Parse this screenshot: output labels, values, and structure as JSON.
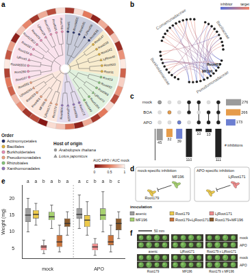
{
  "panel_labels": [
    "a",
    "b",
    "c",
    "d",
    "e",
    "f"
  ],
  "tree": {
    "order_title": "Order",
    "orders": [
      {
        "name": "Actinomycetales",
        "color": "#27326e"
      },
      {
        "name": "Bacillales",
        "color": "#e2b23a"
      },
      {
        "name": "Burkholderiales",
        "color": "#ec8fb6"
      },
      {
        "name": "Pseudomonadales",
        "color": "#f2a37f"
      },
      {
        "name": "Rhizobiales",
        "color": "#86c77a"
      },
      {
        "name": "Xanthomonadales",
        "color": "#9475bd"
      }
    ],
    "host_title": "Host of origin",
    "hosts": [
      {
        "name": "Arabidopsis thaliana",
        "marker": "circle"
      },
      {
        "name": "Lotus japonicus",
        "marker": "triangle"
      }
    ],
    "colorbar": {
      "title": "AUC APO / AUC mock",
      "range": [
        0,
        1
      ],
      "ticks": [
        0,
        0.5,
        1
      ]
    },
    "leaves": [
      {
        "name": "Root1",
        "order": "Actinomycetales",
        "host": "Arabidopsis thaliana",
        "ratio": 0.2
      },
      {
        "name": "Root66D1",
        "order": "Actinomycetales",
        "host": "Arabidopsis thaliana",
        "ratio": 0.9
      },
      {
        "name": "Root101",
        "order": "Actinomycetales",
        "host": "Arabidopsis thaliana",
        "ratio": 0.5
      },
      {
        "name": "LjRoot58",
        "order": "Actinomycetales",
        "host": "Lotus japonicus",
        "ratio": 0.1
      },
      {
        "name": "Root131",
        "order": "Actinomycetales",
        "host": "Arabidopsis thaliana",
        "ratio": 0.7
      },
      {
        "name": "Root147",
        "order": "Bacillales",
        "host": "Arabidopsis thaliana",
        "ratio": 0.3
      },
      {
        "name": "Root239",
        "order": "Bacillales",
        "host": "Arabidopsis thaliana",
        "ratio": 0.8
      },
      {
        "name": "Root342",
        "order": "Bacillales",
        "host": "Arabidopsis thaliana",
        "ratio": 0.15
      },
      {
        "name": "LjRoot40",
        "order": "Bacillales",
        "host": "Lotus japonicus",
        "ratio": 0.6
      },
      {
        "name": "Root920",
        "order": "Bacillales",
        "host": "Arabidopsis thaliana",
        "ratio": 0.95
      },
      {
        "name": "Root11",
        "order": "Bacillales",
        "host": "Arabidopsis thaliana",
        "ratio": 0.4
      },
      {
        "name": "Root23",
        "order": "Rhizobiales",
        "host": "Arabidopsis thaliana",
        "ratio": 0.85
      },
      {
        "name": "Root482",
        "order": "Rhizobiales",
        "host": "Arabidopsis thaliana",
        "ratio": 0.6
      },
      {
        "name": "Root568",
        "order": "Rhizobiales",
        "host": "Arabidopsis thaliana",
        "ratio": 0.3
      },
      {
        "name": "LjRoot70",
        "order": "Rhizobiales",
        "host": "Lotus japonicus",
        "ratio": 0.9
      },
      {
        "name": "Root1204",
        "order": "Rhizobiales",
        "host": "Arabidopsis thaliana",
        "ratio": 0.5
      },
      {
        "name": "Root149",
        "order": "Rhizobiales",
        "host": "Arabidopsis thaliana",
        "ratio": 0.2
      },
      {
        "name": "Root172",
        "order": "Xanthomonadales",
        "host": "Arabidopsis thaliana",
        "ratio": 0.7
      },
      {
        "name": "Root690",
        "order": "Xanthomonadales",
        "host": "Arabidopsis thaliana",
        "ratio": 0.1
      },
      {
        "name": "LjRoot119",
        "order": "Xanthomonadales",
        "host": "Lotus japonicus",
        "ratio": 0.45
      },
      {
        "name": "Root604",
        "order": "Xanthomonadales",
        "host": "Arabidopsis thaliana",
        "ratio": 0.8
      },
      {
        "name": "Root179",
        "order": "Pseudomonadales",
        "host": "Arabidopsis thaliana",
        "ratio": 0.9
      },
      {
        "name": "LjRoot171",
        "order": "Pseudomonadales",
        "host": "Lotus japonicus",
        "ratio": 0.05
      },
      {
        "name": "MF196",
        "order": "Pseudomonadales",
        "host": "Arabidopsis thaliana",
        "ratio": 0.3
      },
      {
        "name": "Root401",
        "order": "Pseudomonadales",
        "host": "Arabidopsis thaliana",
        "ratio": 0.2
      },
      {
        "name": "Root329",
        "order": "Pseudomonadales",
        "host": "Arabidopsis thaliana",
        "ratio": 0.6
      },
      {
        "name": "LjRoot263",
        "order": "Pseudomonadales",
        "host": "Lotus japonicus",
        "ratio": 0.75
      },
      {
        "name": "Root562",
        "order": "Pseudomonadales",
        "host": "Arabidopsis thaliana",
        "ratio": 0.4
      },
      {
        "name": "Root107",
        "order": "Burkholderiales",
        "host": "Arabidopsis thaliana",
        "ratio": 0.5
      },
      {
        "name": "Root280",
        "order": "Burkholderiales",
        "host": "Arabidopsis thaliana",
        "ratio": 0.25
      },
      {
        "name": "Root483D2",
        "order": "Burkholderiales",
        "host": "Arabidopsis thaliana",
        "ratio": 0.95
      },
      {
        "name": "LjRoot1",
        "order": "Burkholderiales",
        "host": "Lotus japonicus",
        "ratio": 0.35
      },
      {
        "name": "Root154",
        "order": "Burkholderiales",
        "host": "Arabidopsis thaliana",
        "ratio": 0.65
      },
      {
        "name": "Root187",
        "order": "Burkholderiales",
        "host": "Arabidopsis thaliana",
        "ratio": 0.1
      },
      {
        "name": "Root123D2",
        "order": "Burkholderiales",
        "host": "Arabidopsis thaliana",
        "ratio": 0.8
      },
      {
        "name": "Root470",
        "order": "Burkholderiales",
        "host": "Arabidopsis thaliana",
        "ratio": 0.55
      },
      {
        "name": "LjRoot29",
        "order": "Burkholderiales",
        "host": "Lotus japonicus",
        "ratio": 0.2
      },
      {
        "name": "Root1221",
        "order": "Burkholderiales",
        "host": "Arabidopsis thaliana",
        "ratio": 0.7
      },
      {
        "name": "Root656",
        "order": "Burkholderiales",
        "host": "Arabidopsis thaliana",
        "ratio": 0.3
      },
      {
        "name": "Root700",
        "order": "Burkholderiales",
        "host": "Arabidopsis thaliana",
        "ratio": 0.9
      }
    ]
  },
  "network": {
    "families": [
      {
        "name": "Comamonadaceae",
        "nodes": 12
      },
      {
        "name": "Bacillaceae",
        "nodes": 10
      },
      {
        "name": "Pseudomonadaceae",
        "nodes": 12
      },
      {
        "name": "Burkholderiaceae",
        "nodes": 10
      }
    ],
    "node_labels": [
      {
        "node": 24,
        "label": "Root401"
      },
      {
        "node": 27,
        "label": "MF196"
      }
    ],
    "edges": [
      [
        24,
        2
      ],
      [
        24,
        5
      ],
      [
        24,
        9
      ],
      [
        24,
        14
      ],
      [
        24,
        18
      ],
      [
        24,
        38
      ],
      [
        27,
        0
      ],
      [
        27,
        3
      ],
      [
        27,
        7
      ],
      [
        27,
        11
      ],
      [
        27,
        13
      ],
      [
        27,
        16
      ],
      [
        27,
        20
      ],
      [
        27,
        36
      ],
      [
        27,
        40
      ],
      [
        25,
        6
      ],
      [
        25,
        15
      ],
      [
        29,
        4
      ],
      [
        29,
        19
      ],
      [
        29,
        35
      ],
      [
        31,
        8
      ],
      [
        31,
        12
      ],
      [
        22,
        10
      ],
      [
        22,
        17
      ],
      [
        33,
        1
      ],
      [
        33,
        41
      ],
      [
        14,
        30
      ],
      [
        18,
        26
      ],
      [
        36,
        23
      ],
      [
        40,
        28
      ],
      [
        5,
        32
      ],
      [
        9,
        42
      ],
      [
        13,
        37
      ],
      [
        17,
        43
      ],
      [
        26,
        39
      ]
    ],
    "colorbar": {
      "labels": [
        "inhibitor",
        "target"
      ],
      "colors": [
        "#5a73d8",
        "#f2856a"
      ]
    }
  },
  "chart_data": [
    {
      "type": "upset",
      "sets": [
        {
          "name": "mock",
          "color": "#9b9b9b",
          "size": 276
        },
        {
          "name": "BOA",
          "color": "#e69c4a",
          "size": 266
        },
        {
          "name": "APO",
          "color": "#6c7fd1",
          "size": 173
        }
      ],
      "set_size_lim": [
        0,
        300
      ],
      "intersections": [
        {
          "sets": [
            "mock"
          ],
          "value": 45
        },
        {
          "sets": [
            "BOA"
          ],
          "value": 32
        },
        {
          "sets": [
            "APO"
          ],
          "value": 39
        },
        {
          "sets": [
            "mock",
            "BOA"
          ],
          "value": 110
        },
        {
          "sets": [
            "mock",
            "APO"
          ],
          "value": 10
        },
        {
          "sets": [
            "BOA",
            "APO"
          ],
          "value": 13
        },
        {
          "sets": [
            "mock",
            "BOA",
            "APO"
          ],
          "value": 111
        }
      ],
      "ylim": [
        0,
        120
      ],
      "y_label": "# inhibitions",
      "tick_labels": false,
      "data_labels": true
    },
    {
      "type": "box",
      "categories": [
        "mock",
        "APO"
      ],
      "y_label": "Weight (mg)",
      "ylim": [
        2,
        24
      ],
      "yticks": [
        5,
        10,
        15,
        20
      ],
      "grid": false,
      "legend_title": "inoculation",
      "series": [
        {
          "name": "axenic",
          "color": "#9e9e9e",
          "min": [
            10,
            11
          ],
          "q1": [
            13,
            14
          ],
          "median": [
            15,
            15.2
          ],
          "q3": [
            17,
            17
          ],
          "max": [
            20,
            21
          ],
          "letters": [
            "a",
            "a"
          ]
        },
        {
          "name": "Root179",
          "color": "#ecc94b",
          "min": [
            12,
            9
          ],
          "q1": [
            14,
            11.5
          ],
          "median": [
            15.2,
            13.5
          ],
          "q3": [
            16.5,
            15
          ],
          "max": [
            18.5,
            19
          ],
          "letters": [
            "a",
            "c"
          ]
        },
        {
          "name": "LjRoot171",
          "color": "#f08c8c",
          "min": [
            3.5,
            3
          ],
          "q1": [
            4.5,
            4.5
          ],
          "median": [
            5.5,
            5.5
          ],
          "q3": [
            6,
            6.5
          ],
          "max": [
            7.5,
            8
          ],
          "letters": [
            "b",
            "b"
          ]
        },
        {
          "name": "MF196",
          "color": "#a6d16f",
          "min": [
            11,
            10
          ],
          "q1": [
            13.5,
            13.5
          ],
          "median": [
            14.5,
            15
          ],
          "q3": [
            16,
            17
          ],
          "max": [
            18,
            22
          ],
          "letters": [
            "a",
            "a"
          ]
        },
        {
          "name": "Root179+LjRoot171",
          "color": "#c9733a",
          "min": [
            4,
            4
          ],
          "q1": [
            5.5,
            6
          ],
          "median": [
            7,
            7
          ],
          "q3": [
            9,
            9
          ],
          "max": [
            12,
            12
          ],
          "letters": [
            "b",
            "b"
          ]
        },
        {
          "name": "Root179+MF196",
          "color": "#8b5a2b",
          "min": [
            9,
            8
          ],
          "q1": [
            11.5,
            10.5
          ],
          "median": [
            12.5,
            12.5
          ],
          "q3": [
            14,
            14
          ],
          "max": [
            16,
            16
          ],
          "letters": [
            "a",
            "c"
          ]
        }
      ]
    }
  ],
  "schematic": [
    {
      "title": "mock-specific inhibition",
      "inhibitor": "MF196",
      "target": "Root179",
      "labels": [
        "MF196",
        "Root179"
      ]
    },
    {
      "title": "APO-specific inhibition",
      "inhibitor": "LjRoot171",
      "target": "Root179",
      "labels": [
        "LjRoot171"
      ]
    }
  ],
  "photo": {
    "scale_bar": "50 mm",
    "conditions": [
      "mock",
      "APO"
    ],
    "blocks": [
      [
        "axenic",
        "LjRoot171",
        "Root179 x LjRoot171"
      ],
      [
        "Root179",
        "MF196",
        "Root179 x MF196"
      ]
    ]
  }
}
